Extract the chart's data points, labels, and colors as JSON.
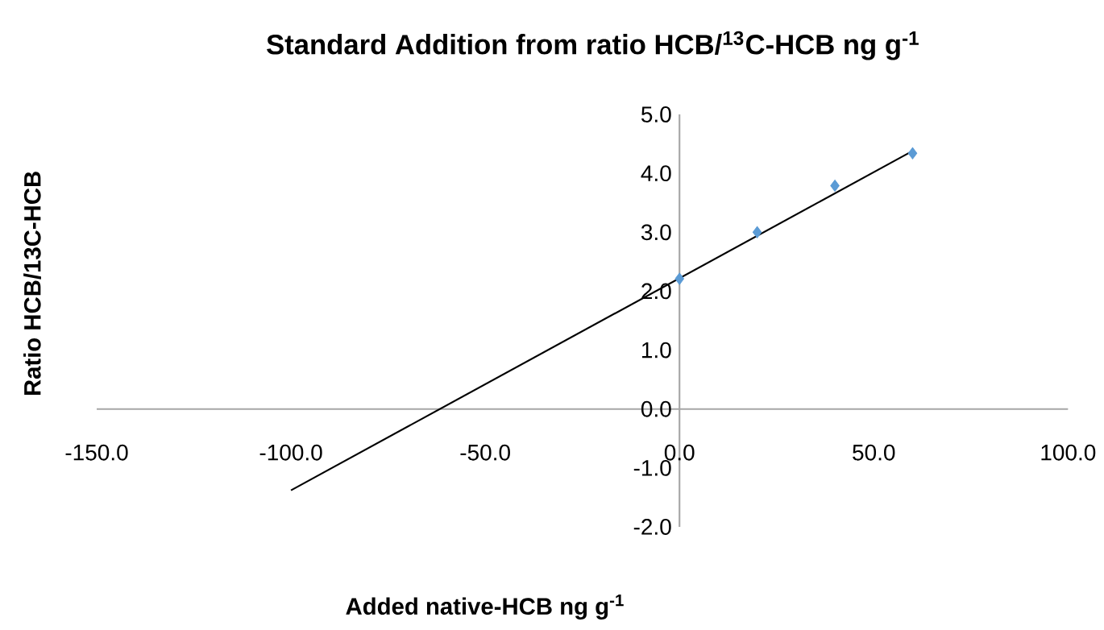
{
  "chart_data": {
    "type": "scatter",
    "title": "Standard Addition from ratio HCB/$^{13}$C-HCB ng g$^{-1}$",
    "xlabel": "Added native-HCB ng g$^{-1}$",
    "ylabel": "Ratio HCB/13C-HCB",
    "x": [
      0,
      20,
      40,
      60
    ],
    "series": [
      {
        "color": "#5b9bd5",
        "marker": "diamond",
        "values": [
          2.21,
          3.0,
          3.79,
          4.34
        ]
      },
      {
        "type": "line",
        "color": "#000000",
        "marker": "none",
        "x": [
          -100,
          60
        ],
        "values": [
          -1.38,
          4.38
        ]
      }
    ],
    "xlim": [
      -150,
      100
    ],
    "ylim": [
      -2,
      5
    ],
    "xticks": [
      {
        "value": -150,
        "label": "-150.0"
      },
      {
        "value": -100,
        "label": "-100.0"
      },
      {
        "value": -50,
        "label": "-50.0"
      },
      {
        "value": 0,
        "label": "0.0"
      },
      {
        "value": 50,
        "label": "50.0"
      },
      {
        "value": 100,
        "label": "100.0"
      }
    ],
    "yticks": [
      {
        "value": -2,
        "label": "-2.0"
      },
      {
        "value": -1,
        "label": "-1.0"
      },
      {
        "value": 0,
        "label": "0.0"
      },
      {
        "value": 1,
        "label": "1.0"
      },
      {
        "value": 2,
        "label": "2.0"
      },
      {
        "value": 3,
        "label": "3.0"
      },
      {
        "value": 4,
        "label": "4.0"
      },
      {
        "value": 5,
        "label": "5.0"
      }
    ],
    "grid": false
  }
}
